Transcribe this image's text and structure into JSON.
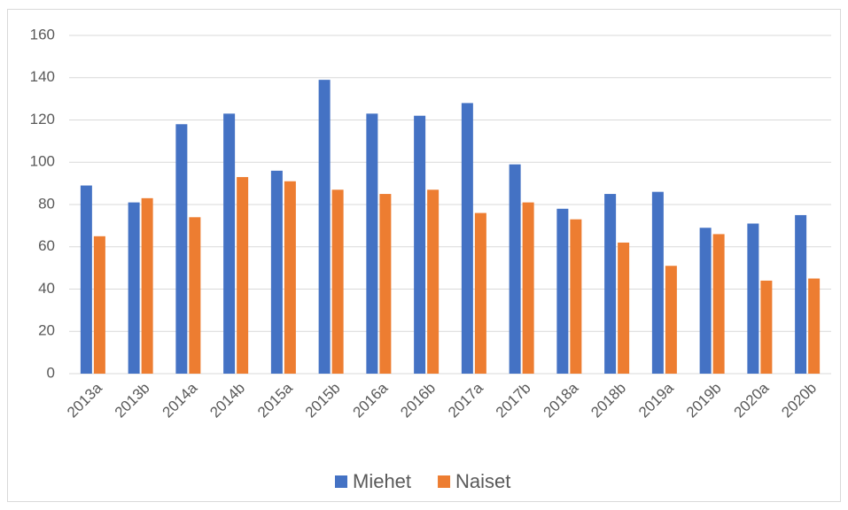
{
  "chart_data": {
    "type": "bar",
    "categories": [
      "2013a",
      "2013b",
      "2014a",
      "2014b",
      "2015a",
      "2015b",
      "2016a",
      "2016b",
      "2017a",
      "2017b",
      "2018a",
      "2018b",
      "2019a",
      "2019b",
      "2020a",
      "2020b"
    ],
    "series": [
      {
        "name": "Miehet",
        "color": "#4472c4",
        "values": [
          89,
          81,
          118,
          123,
          96,
          139,
          123,
          122,
          128,
          99,
          78,
          85,
          86,
          69,
          71,
          75
        ]
      },
      {
        "name": "Naiset",
        "color": "#ed7d31",
        "values": [
          65,
          83,
          74,
          93,
          91,
          87,
          85,
          87,
          76,
          81,
          73,
          62,
          51,
          66,
          44,
          45
        ]
      }
    ],
    "ylim": [
      0,
      160
    ],
    "yticks": [
      0,
      20,
      40,
      60,
      80,
      100,
      120,
      140,
      160
    ],
    "grid": true,
    "legend": "bottom"
  }
}
